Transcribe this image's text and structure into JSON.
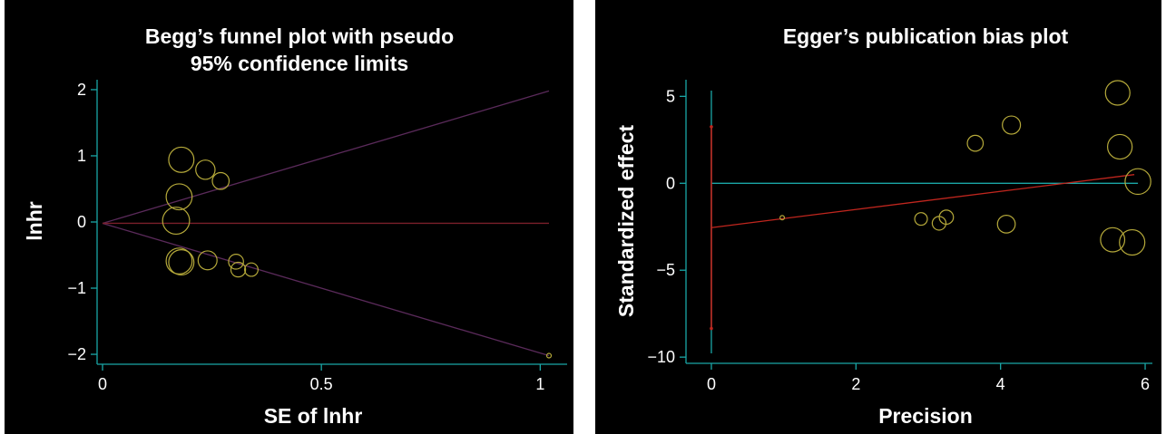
{
  "colors": {
    "background": "#000000",
    "axis": "#1aa6a6",
    "marker": "#b5a93a",
    "begg_center_line": "#7a1f2a",
    "begg_limit_line": "#5a2a5a",
    "egger_regression_line": "#c0261e",
    "egger_ci_line": "#c0261e",
    "egger_zero_line": "#1aa6a6"
  },
  "chart_data": [
    {
      "type": "scatter",
      "title_lines": [
        "Begg’s funnel plot with pseudo",
        "95% confidence limits"
      ],
      "xlabel": "SE of lnhr",
      "ylabel": "lnhr",
      "xlim": [
        0,
        1.02
      ],
      "ylim": [
        -2.15,
        2.15
      ],
      "xticks": [
        0,
        0.5,
        1
      ],
      "xtick_labels": [
        "0",
        "0.5",
        "1"
      ],
      "yticks": [
        2,
        1,
        0,
        -1,
        -2
      ],
      "ytick_labels": [
        "2",
        "1",
        "0",
        "−1",
        "−2"
      ],
      "grid": false,
      "center_line": {
        "x": [
          0,
          1.02
        ],
        "y": [
          -0.02,
          -0.02
        ]
      },
      "pseudo_limits": {
        "upper": {
          "x": [
            0,
            1.02
          ],
          "y": [
            -0.02,
            1.98
          ]
        },
        "lower": {
          "x": [
            0,
            1.02
          ],
          "y": [
            -0.02,
            -2.02
          ]
        }
      },
      "points": [
        {
          "x": 0.18,
          "y": 0.94,
          "weight": 30.9
        },
        {
          "x": 0.235,
          "y": 0.79,
          "weight": 18.1
        },
        {
          "x": 0.27,
          "y": 0.62,
          "weight": 13.7
        },
        {
          "x": 0.175,
          "y": 0.38,
          "weight": 32.7
        },
        {
          "x": 0.168,
          "y": 0.02,
          "weight": 35.4
        },
        {
          "x": 0.175,
          "y": -0.59,
          "weight": 32.7
        },
        {
          "x": 0.18,
          "y": -0.61,
          "weight": 30.9
        },
        {
          "x": 0.24,
          "y": -0.58,
          "weight": 17.4
        },
        {
          "x": 0.305,
          "y": -0.6,
          "weight": 10.8
        },
        {
          "x": 0.31,
          "y": -0.72,
          "weight": 10.4
        },
        {
          "x": 0.34,
          "y": -0.72,
          "weight": 8.7
        },
        {
          "x": 1.02,
          "y": -2.02,
          "weight": 1.0
        }
      ]
    },
    {
      "type": "scatter",
      "title_lines": [
        "Egger’s publication bias plot"
      ],
      "xlabel": "Precision",
      "ylabel": "Standardized effect",
      "xlim": [
        -0.1,
        6.1
      ],
      "ylim": [
        -10.2,
        5.8
      ],
      "xticks": [
        0,
        2,
        4,
        6
      ],
      "xtick_labels": [
        "0",
        "2",
        "4",
        "6"
      ],
      "yticks": [
        5,
        0,
        -5,
        -10
      ],
      "ytick_labels": [
        "5",
        "0",
        "−5",
        "−10"
      ],
      "grid": false,
      "zero_line": {
        "x": [
          0,
          5.9
        ],
        "y": [
          0,
          0
        ]
      },
      "regression_line": {
        "x": [
          0,
          5.85
        ],
        "y": [
          -2.55,
          0.5
        ]
      },
      "intercept_ci": {
        "x": 0,
        "y_low": -8.35,
        "y_high": 3.25
      },
      "points": [
        {
          "x": 0.98,
          "y": -1.98,
          "weight": 1.0
        },
        {
          "x": 2.9,
          "y": -2.05,
          "weight": 8.4
        },
        {
          "x": 3.15,
          "y": -2.3,
          "weight": 9.9
        },
        {
          "x": 3.25,
          "y": -1.95,
          "weight": 10.6
        },
        {
          "x": 3.65,
          "y": 2.3,
          "weight": 13.3
        },
        {
          "x": 4.08,
          "y": -2.35,
          "weight": 16.6
        },
        {
          "x": 4.15,
          "y": 3.35,
          "weight": 17.2
        },
        {
          "x": 5.55,
          "y": -3.25,
          "weight": 30.8
        },
        {
          "x": 5.62,
          "y": 5.2,
          "weight": 31.6
        },
        {
          "x": 5.65,
          "y": 2.1,
          "weight": 31.9
        },
        {
          "x": 5.82,
          "y": -3.4,
          "weight": 33.9
        },
        {
          "x": 5.9,
          "y": 0.1,
          "weight": 34.8
        }
      ]
    }
  ]
}
